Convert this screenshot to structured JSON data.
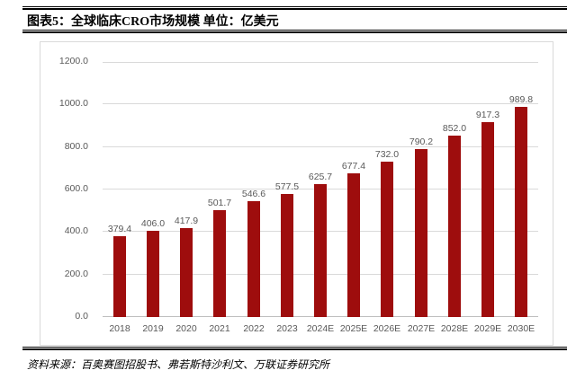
{
  "header": {
    "title": "图表5：全球临床CRO市场规模 单位：亿美元"
  },
  "footer": {
    "source": "资料来源：百奥赛图招股书、弗若斯特沙利文、万联证券研究所"
  },
  "colors": {
    "bar": "#9e0d0d",
    "grid": "#d9d9d9",
    "zero_line": "#bfbfbf",
    "axis_text": "#595959",
    "frame_border": "#d9d9d9",
    "rule": "#000000"
  },
  "chart_data": {
    "type": "bar",
    "title": "全球临床CRO市场规模",
    "unit": "亿美元",
    "categories": [
      "2018",
      "2019",
      "2020",
      "2021",
      "2022",
      "2023",
      "2024E",
      "2025E",
      "2026E",
      "2027E",
      "2028E",
      "2029E",
      "2030E"
    ],
    "values": [
      379.4,
      406.0,
      417.9,
      501.7,
      546.6,
      577.5,
      625.7,
      677.4,
      732.0,
      790.2,
      852.0,
      917.3,
      989.8
    ],
    "ylim": [
      0,
      1200
    ],
    "ytick_step": 200,
    "ytick_decimals": 1,
    "value_label_decimals": 1,
    "grid": true,
    "data_labels": true,
    "legend": "none"
  }
}
